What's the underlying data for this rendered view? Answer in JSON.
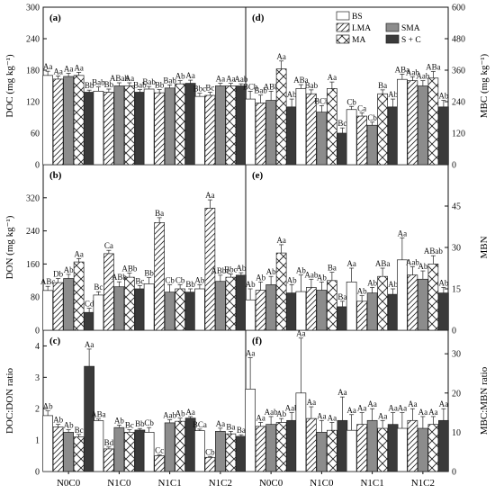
{
  "chart_data": [
    {
      "id": "a",
      "panel_label": "(a)",
      "type": "bar",
      "ylabel": "DOC (mg kg⁻¹)",
      "ylim": [
        0,
        300
      ],
      "yticks": [
        0,
        60,
        120,
        180,
        240,
        300
      ],
      "side": "left",
      "categories": [
        "N0C0",
        "N1C0",
        "N1C1",
        "N1C2"
      ],
      "series": [
        {
          "name": "BS",
          "values": [
            170,
            140,
            144,
            130
          ],
          "errors": [
            8,
            8,
            5,
            6
          ],
          "letters": [
            "Aa",
            "Bab",
            "Bab",
            "Bbc"
          ]
        },
        {
          "name": "LMA",
          "values": [
            163,
            138,
            137,
            132
          ],
          "errors": [
            6,
            6,
            6,
            6
          ],
          "letters": [
            "Aa",
            "Bb",
            "Bb",
            "Bc"
          ]
        },
        {
          "name": "SMA",
          "values": [
            168,
            150,
            146,
            150
          ],
          "errors": [
            6,
            6,
            6,
            5
          ],
          "letters": [
            "Aa",
            "ABab",
            "Bab",
            "Aa"
          ]
        },
        {
          "name": "MA",
          "values": [
            170,
            150,
            154,
            150
          ],
          "errors": [
            6,
            6,
            6,
            5
          ],
          "letters": [
            "Aa",
            "Aa",
            "Ab",
            "Aa"
          ]
        },
        {
          "name": "S + C",
          "values": [
            138,
            138,
            155,
            150
          ],
          "errors": [
            4,
            5,
            6,
            4
          ],
          "letters": [
            "Bb",
            "Bab",
            "Aa",
            "Aab"
          ]
        }
      ]
    },
    {
      "id": "d",
      "panel_label": "(d)",
      "type": "bar",
      "ylabel": "MBC (mg kg⁻¹)",
      "ylim": [
        0,
        600
      ],
      "yticks": [
        0,
        120,
        240,
        360,
        480,
        600
      ],
      "side": "right",
      "categories": [
        "N0C0",
        "N1C0",
        "N1C1",
        "N1C2"
      ],
      "series": [
        {
          "name": "BS",
          "values": [
            250,
            290,
            210,
            325
          ],
          "errors": [
            30,
            15,
            12,
            20
          ],
          "letters": [
            "BCb",
            "ABa",
            "Cb",
            "ABa"
          ]
        },
        {
          "name": "LMA",
          "values": [
            235,
            270,
            185,
            320
          ],
          "errors": [
            30,
            15,
            12,
            15
          ],
          "letters": [
            "Bab",
            "Bab",
            "Ca",
            "Aab"
          ]
        },
        {
          "name": "SMA",
          "values": [
            245,
            200,
            150,
            300
          ],
          "errors": [
            35,
            25,
            12,
            20
          ],
          "letters": [
            "ABb",
            "BCb",
            "Cb",
            "Aab"
          ]
        },
        {
          "name": "MA",
          "values": [
            365,
            290,
            270,
            330
          ],
          "errors": [
            30,
            25,
            15,
            25
          ],
          "letters": [
            "Aa",
            "Aa",
            "Ba",
            "ABa"
          ]
        },
        {
          "name": "S + C",
          "values": [
            220,
            120,
            220,
            220
          ],
          "errors": [
            30,
            20,
            30,
            25
          ],
          "letters": [
            "Ab",
            "Bc",
            "Ab",
            "Ab"
          ]
        }
      ]
    },
    {
      "id": "b",
      "panel_label": "(b)",
      "type": "bar",
      "ylabel": "DON (mg kg⁻¹)",
      "ylim": [
        0,
        400
      ],
      "yticks": [
        0,
        80,
        160,
        240,
        320
      ],
      "side": "left",
      "categories": [
        "N0C0",
        "N1C0",
        "N1C1",
        "N1C2"
      ],
      "series": [
        {
          "name": "BS",
          "values": [
            96,
            85,
            112,
            100
          ],
          "errors": [
            10,
            8,
            15,
            10
          ],
          "letters": [
            "ABc",
            "Bc",
            "Bb",
            "Ab"
          ]
        },
        {
          "name": "LMA",
          "values": [
            115,
            185,
            260,
            295
          ],
          "errors": [
            10,
            8,
            12,
            20
          ],
          "letters": [
            "Db",
            "Ca",
            "Ba",
            "Aa"
          ]
        },
        {
          "name": "SMA",
          "values": [
            125,
            105,
            92,
            118
          ],
          "errors": [
            10,
            12,
            18,
            15
          ],
          "letters": [
            "Ab",
            "ABb",
            "Cb",
            "ABbc"
          ]
        },
        {
          "name": "MA",
          "values": [
            165,
            128,
            100,
            128
          ],
          "errors": [
            8,
            10,
            10,
            8
          ],
          "letters": [
            "Aa",
            "ABb",
            "Cb",
            "Bbc"
          ]
        },
        {
          "name": "S + C",
          "values": [
            43,
            100,
            92,
            133
          ],
          "errors": [
            10,
            8,
            8,
            6
          ],
          "letters": [
            "Cd",
            "Bc",
            "Bb",
            "Ab"
          ]
        }
      ]
    },
    {
      "id": "e",
      "panel_label": "(e)",
      "type": "bar",
      "ylabel": "MBN",
      "ylim": [
        0,
        60
      ],
      "yticks": [
        0,
        15,
        30,
        45
      ],
      "side": "right",
      "categories": [
        "N0C0",
        "N1C0",
        "N1C1",
        "N1C2"
      ],
      "series": [
        {
          "name": "BS",
          "values": [
            11,
            14,
            17.5,
            25.5
          ],
          "errors": [
            4,
            6,
            5,
            8
          ],
          "letters": [
            "Ab",
            "Ab",
            "Aa",
            "Aa"
          ]
        },
        {
          "name": "LMA",
          "values": [
            14.5,
            15.5,
            10.5,
            20
          ],
          "errors": [
            3,
            3,
            2,
            3
          ],
          "letters": [
            "Ab",
            "Aab",
            "Ab",
            "Aab"
          ]
        },
        {
          "name": "SMA",
          "values": [
            16.5,
            14.5,
            13.5,
            18.5
          ],
          "errors": [
            3,
            3,
            2,
            3
          ],
          "letters": [
            "Ab",
            "Ab",
            "Ab",
            "Ab"
          ]
        },
        {
          "name": "MA",
          "values": [
            28,
            18,
            19.5,
            24
          ],
          "errors": [
            3,
            3,
            3,
            3
          ],
          "letters": [
            "Aa",
            "Ba",
            "ABa",
            "ABab"
          ]
        },
        {
          "name": "S + C",
          "values": [
            13.5,
            8.5,
            13,
            13.5
          ],
          "errors": [
            3,
            2,
            2,
            2
          ],
          "letters": [
            "Ab",
            "Ba",
            "Ab",
            "Ab"
          ]
        }
      ]
    },
    {
      "id": "c",
      "panel_label": "(c)",
      "type": "bar",
      "ylabel": "DOC:DON ratio",
      "ylim": [
        0,
        4.5
      ],
      "yticks": [
        0,
        1,
        2,
        3,
        4
      ],
      "side": "left",
      "categories": [
        "N0C0",
        "N1C0",
        "N1C1",
        "N1C2"
      ],
      "series": [
        {
          "name": "BS",
          "values": [
            1.78,
            1.62,
            1.25,
            1.3
          ],
          "errors": [
            0.15,
            0.05,
            0.15,
            0.05
          ],
          "letters": [
            "Ab",
            "ABa",
            "Cb",
            "BCa"
          ]
        },
        {
          "name": "LMA",
          "values": [
            1.42,
            0.72,
            0.5,
            0.45
          ],
          "errors": [
            0.08,
            0.06,
            0.03,
            0.03
          ],
          "letters": [
            "Ab",
            "Bd",
            "Cc",
            "Cb"
          ]
        },
        {
          "name": "SMA",
          "values": [
            1.25,
            1.4,
            1.55,
            1.28
          ],
          "errors": [
            0.08,
            0.08,
            0.1,
            0.1
          ],
          "letters": [
            "Ab",
            "Ab",
            "Aab",
            "Aa"
          ]
        },
        {
          "name": "MA",
          "values": [
            1.1,
            1.25,
            1.6,
            1.2
          ],
          "errors": [
            0.08,
            0.08,
            0.1,
            0.08
          ],
          "letters": [
            "Bc",
            "Bc",
            "Ab",
            "Ba"
          ]
        },
        {
          "name": "S + C",
          "values": [
            3.35,
            1.32,
            1.7,
            1.12
          ],
          "errors": [
            0.55,
            0.05,
            0.05,
            0.05
          ],
          "letters": [
            "Aa",
            "Bb",
            "Aa",
            "Ba"
          ]
        }
      ]
    },
    {
      "id": "f",
      "panel_label": "(f)",
      "type": "bar",
      "ylabel": "MBC:MBN ratio",
      "ylim": [
        0,
        36
      ],
      "yticks": [
        0,
        10,
        20,
        30
      ],
      "side": "right",
      "categories": [
        "N0C0",
        "N1C0",
        "N1C1",
        "N1C2"
      ],
      "series": [
        {
          "name": "BS",
          "values": [
            21,
            20,
            10.5,
            11
          ],
          "errors": [
            8,
            14,
            4,
            4
          ],
          "letters": [
            "Aa",
            "Aa",
            "Aa",
            "Aa"
          ]
        },
        {
          "name": "LMA",
          "values": [
            11.5,
            13.5,
            12,
            13
          ],
          "errors": [
            1,
            3,
            3,
            3
          ],
          "letters": [
            "Aa",
            "Aa",
            "Aa",
            "Aa"
          ]
        },
        {
          "name": "SMA",
          "values": [
            12,
            10,
            13,
            11
          ],
          "errors": [
            2,
            3,
            3,
            3
          ],
          "letters": [
            "Aab",
            "Aa",
            "Aa",
            "Aa"
          ]
        },
        {
          "name": "MA",
          "values": [
            12.5,
            10.5,
            11,
            12
          ],
          "errors": [
            1,
            2,
            2,
            2
          ],
          "letters": [
            "Ab",
            "Aa",
            "Aa",
            "Aa"
          ]
        },
        {
          "name": "S + C",
          "values": [
            13,
            13,
            12,
            13
          ],
          "errors": [
            2,
            6,
            3,
            3
          ],
          "letters": [
            "Aab",
            "Aa",
            "Aa",
            "Aa"
          ]
        }
      ]
    }
  ],
  "legend": [
    "BS",
    "LMA",
    "MA",
    "SMA",
    "S + C"
  ],
  "legend_placement": "top-right of panel (d)",
  "colors": {
    "BS": "#ffffff",
    "LMA": "#ffffff",
    "SMA": "#8c8c8c",
    "MA": "#ffffff",
    "S + C": "#3a3a3a"
  },
  "patterns": {
    "BS": "none",
    "LMA": "diagonal",
    "SMA": "none",
    "MA": "cross",
    "S + C": "none"
  },
  "x_tick_labels": [
    "N0C0",
    "N1C0",
    "N1C1",
    "N1C2"
  ]
}
